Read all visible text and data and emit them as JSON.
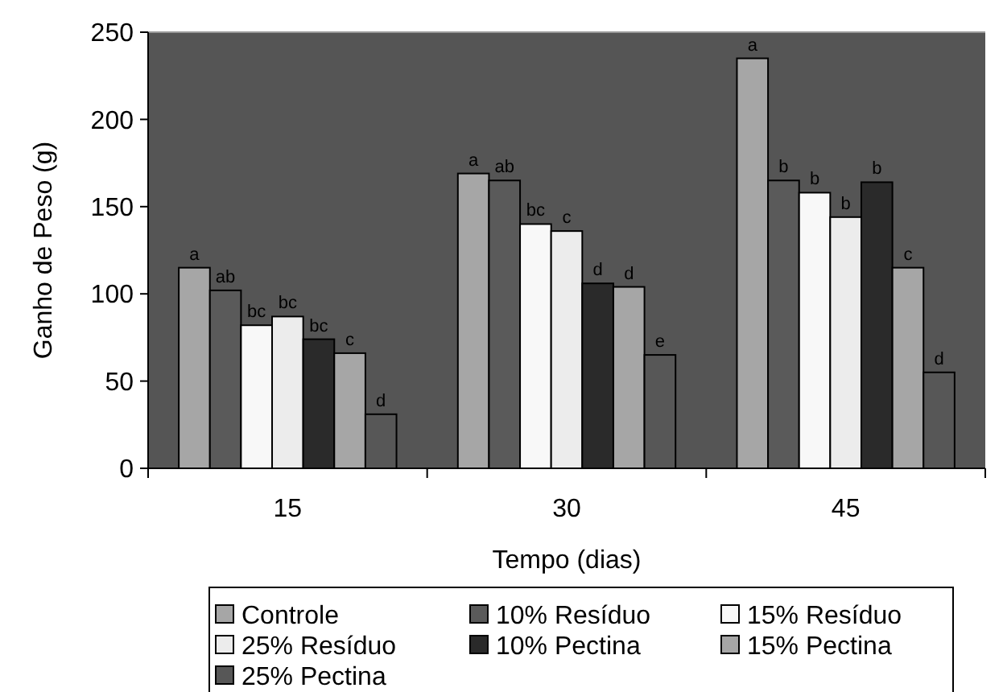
{
  "chart_data": {
    "type": "bar",
    "xlabel": "Tempo (dias)",
    "ylabel": "Ganho de Peso (g)",
    "categories": [
      "15",
      "30",
      "45"
    ],
    "ylim": [
      0,
      250
    ],
    "yticks": [
      0,
      50,
      100,
      150,
      200,
      250
    ],
    "legend": "bottom",
    "series": [
      {
        "name": "Controle",
        "color": "#a6a6a6",
        "values": [
          115,
          169,
          235
        ],
        "value_labels": [
          "a",
          "a",
          "a"
        ]
      },
      {
        "name": "10% Resíduo",
        "color": "#5a5a5a",
        "values": [
          102,
          165,
          165
        ],
        "value_labels": [
          "ab",
          "ab",
          "b"
        ]
      },
      {
        "name": "15% Resíduo",
        "color": "#f8f8f8",
        "values": [
          82,
          140,
          158
        ],
        "value_labels": [
          "bc",
          "bc",
          "b"
        ]
      },
      {
        "name": "25% Resíduo",
        "color": "#ececec",
        "values": [
          87,
          136,
          144
        ],
        "value_labels": [
          "bc",
          "c",
          "b"
        ]
      },
      {
        "name": "10% Pectina",
        "color": "#2a2a2a",
        "values": [
          74,
          106,
          164
        ],
        "value_labels": [
          "bc",
          "d",
          "b"
        ]
      },
      {
        "name": "15% Pectina",
        "color": "#a6a6a6",
        "values": [
          66,
          104,
          115
        ],
        "value_labels": [
          "c",
          "d",
          "c"
        ]
      },
      {
        "name": "25% Pectina",
        "color": "#575757",
        "values": [
          31,
          65,
          55
        ],
        "value_labels": [
          "d",
          "e",
          "d"
        ]
      }
    ]
  }
}
